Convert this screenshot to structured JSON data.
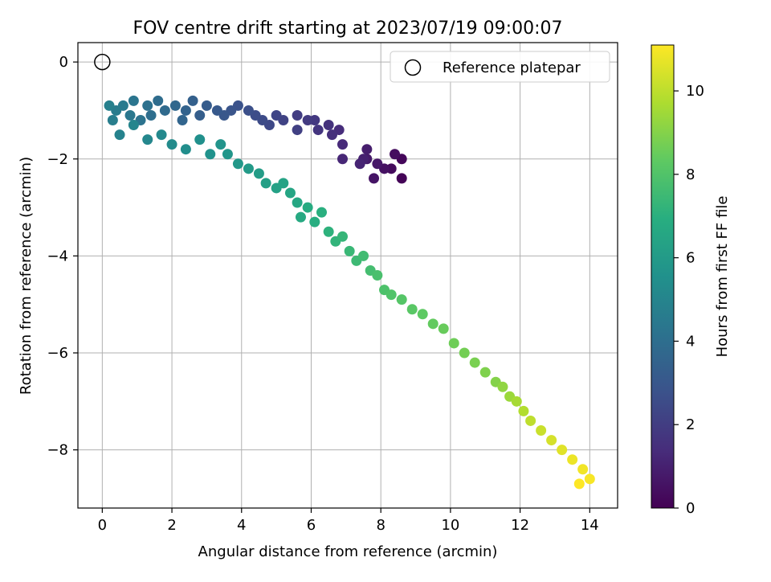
{
  "chart_data": {
    "type": "scatter",
    "title": "FOV centre drift starting at 2023/07/19 09:00:07",
    "xlabel": "Angular distance from reference (arcmin)",
    "ylabel": "Rotation from reference (arcmin)",
    "xlim": [
      -0.7,
      14.8
    ],
    "ylim": [
      -9.2,
      0.4
    ],
    "xticks": [
      0,
      2,
      4,
      6,
      8,
      10,
      12,
      14
    ],
    "yticks": [
      0,
      -2,
      -4,
      -6,
      -8
    ],
    "xtick_labels": [
      "0",
      "2",
      "4",
      "6",
      "8",
      "10",
      "12",
      "14"
    ],
    "ytick_labels": [
      "0",
      "−2",
      "−4",
      "−6",
      "−8"
    ],
    "grid": true,
    "legend": {
      "position": "top-right",
      "entries": [
        "Reference platepar"
      ]
    },
    "reference_point": {
      "name": "Reference platepar",
      "x": 0,
      "y": 0,
      "marker": "open-circle"
    },
    "colorbar": {
      "label": "Hours from first FF file",
      "colormap": "viridis",
      "range": [
        0,
        11.1
      ],
      "ticks": [
        0,
        2,
        4,
        6,
        8,
        10
      ],
      "tick_labels": [
        "0",
        "2",
        "4",
        "6",
        "8",
        "10"
      ]
    },
    "points": [
      [
        8.6,
        -2.4,
        0.1
      ],
      [
        8.6,
        -2.0,
        0.2
      ],
      [
        8.3,
        -2.2,
        0.3
      ],
      [
        8.4,
        -1.9,
        0.4
      ],
      [
        8.1,
        -2.2,
        0.5
      ],
      [
        7.8,
        -2.4,
        0.6
      ],
      [
        7.9,
        -2.1,
        0.7
      ],
      [
        7.6,
        -2.0,
        0.8
      ],
      [
        7.6,
        -1.8,
        0.9
      ],
      [
        7.5,
        -2.0,
        1.0
      ],
      [
        7.4,
        -2.1,
        1.1
      ],
      [
        6.9,
        -2.0,
        1.2
      ],
      [
        6.9,
        -1.7,
        1.3
      ],
      [
        6.8,
        -1.4,
        1.4
      ],
      [
        6.6,
        -1.5,
        1.5
      ],
      [
        6.5,
        -1.3,
        1.6
      ],
      [
        6.2,
        -1.4,
        1.7
      ],
      [
        6.1,
        -1.2,
        1.8
      ],
      [
        5.9,
        -1.2,
        1.9
      ],
      [
        5.6,
        -1.1,
        2.0
      ],
      [
        5.6,
        -1.4,
        2.1
      ],
      [
        5.2,
        -1.2,
        2.2
      ],
      [
        5.0,
        -1.1,
        2.3
      ],
      [
        4.8,
        -1.3,
        2.4
      ],
      [
        4.6,
        -1.2,
        2.5
      ],
      [
        4.4,
        -1.1,
        2.6
      ],
      [
        4.2,
        -1.0,
        2.7
      ],
      [
        3.9,
        -0.9,
        2.8
      ],
      [
        3.7,
        -1.0,
        2.9
      ],
      [
        3.5,
        -1.1,
        3.0
      ],
      [
        3.3,
        -1.0,
        3.1
      ],
      [
        3.0,
        -0.9,
        3.2
      ],
      [
        2.8,
        -1.1,
        3.3
      ],
      [
        2.6,
        -0.8,
        3.4
      ],
      [
        2.4,
        -1.0,
        3.5
      ],
      [
        2.3,
        -1.2,
        3.6
      ],
      [
        2.1,
        -0.9,
        3.7
      ],
      [
        1.8,
        -1.0,
        3.8
      ],
      [
        1.6,
        -0.8,
        3.9
      ],
      [
        1.4,
        -1.1,
        4.0
      ],
      [
        1.3,
        -0.9,
        4.1
      ],
      [
        1.1,
        -1.2,
        4.2
      ],
      [
        0.9,
        -0.8,
        4.3
      ],
      [
        0.8,
        -1.1,
        4.4
      ],
      [
        0.6,
        -0.9,
        4.5
      ],
      [
        0.4,
        -1.0,
        4.6
      ],
      [
        0.3,
        -1.2,
        4.7
      ],
      [
        0.2,
        -0.9,
        4.8
      ],
      [
        0.5,
        -1.5,
        4.9
      ],
      [
        0.9,
        -1.3,
        5.0
      ],
      [
        1.3,
        -1.6,
        5.1
      ],
      [
        1.7,
        -1.5,
        5.2
      ],
      [
        2.0,
        -1.7,
        5.3
      ],
      [
        2.4,
        -1.8,
        5.4
      ],
      [
        2.8,
        -1.6,
        5.5
      ],
      [
        3.1,
        -1.9,
        5.6
      ],
      [
        3.4,
        -1.7,
        5.7
      ],
      [
        3.6,
        -1.9,
        5.8
      ],
      [
        3.9,
        -2.1,
        5.9
      ],
      [
        4.2,
        -2.2,
        6.0
      ],
      [
        4.5,
        -2.3,
        6.1
      ],
      [
        4.7,
        -2.5,
        6.2
      ],
      [
        5.0,
        -2.6,
        6.3
      ],
      [
        5.2,
        -2.5,
        6.4
      ],
      [
        5.4,
        -2.7,
        6.5
      ],
      [
        5.6,
        -2.9,
        6.6
      ],
      [
        5.7,
        -3.2,
        6.7
      ],
      [
        5.9,
        -3.0,
        6.8
      ],
      [
        6.1,
        -3.3,
        6.9
      ],
      [
        6.3,
        -3.1,
        7.0
      ],
      [
        6.5,
        -3.5,
        7.1
      ],
      [
        6.7,
        -3.7,
        7.2
      ],
      [
        6.9,
        -3.6,
        7.3
      ],
      [
        7.1,
        -3.9,
        7.4
      ],
      [
        7.3,
        -4.1,
        7.5
      ],
      [
        7.5,
        -4.0,
        7.6
      ],
      [
        7.7,
        -4.3,
        7.7
      ],
      [
        7.9,
        -4.4,
        7.8
      ],
      [
        8.1,
        -4.7,
        7.9
      ],
      [
        8.3,
        -4.8,
        8.0
      ],
      [
        8.6,
        -4.9,
        8.1
      ],
      [
        8.9,
        -5.1,
        8.2
      ],
      [
        9.2,
        -5.2,
        8.3
      ],
      [
        9.5,
        -5.4,
        8.4
      ],
      [
        9.8,
        -5.5,
        8.5
      ],
      [
        10.1,
        -5.8,
        8.6
      ],
      [
        10.4,
        -6.0,
        8.7
      ],
      [
        10.7,
        -6.2,
        8.8
      ],
      [
        11.0,
        -6.4,
        8.9
      ],
      [
        11.3,
        -6.6,
        9.0
      ],
      [
        11.5,
        -6.7,
        9.2
      ],
      [
        11.7,
        -6.9,
        9.4
      ],
      [
        11.9,
        -7.0,
        9.6
      ],
      [
        12.1,
        -7.2,
        9.8
      ],
      [
        12.3,
        -7.4,
        10.0
      ],
      [
        12.6,
        -7.6,
        10.2
      ],
      [
        12.9,
        -7.8,
        10.4
      ],
      [
        13.2,
        -8.0,
        10.6
      ],
      [
        13.5,
        -8.2,
        10.8
      ],
      [
        13.8,
        -8.4,
        10.9
      ],
      [
        14.0,
        -8.6,
        11.0
      ],
      [
        13.7,
        -8.7,
        11.1
      ]
    ]
  }
}
